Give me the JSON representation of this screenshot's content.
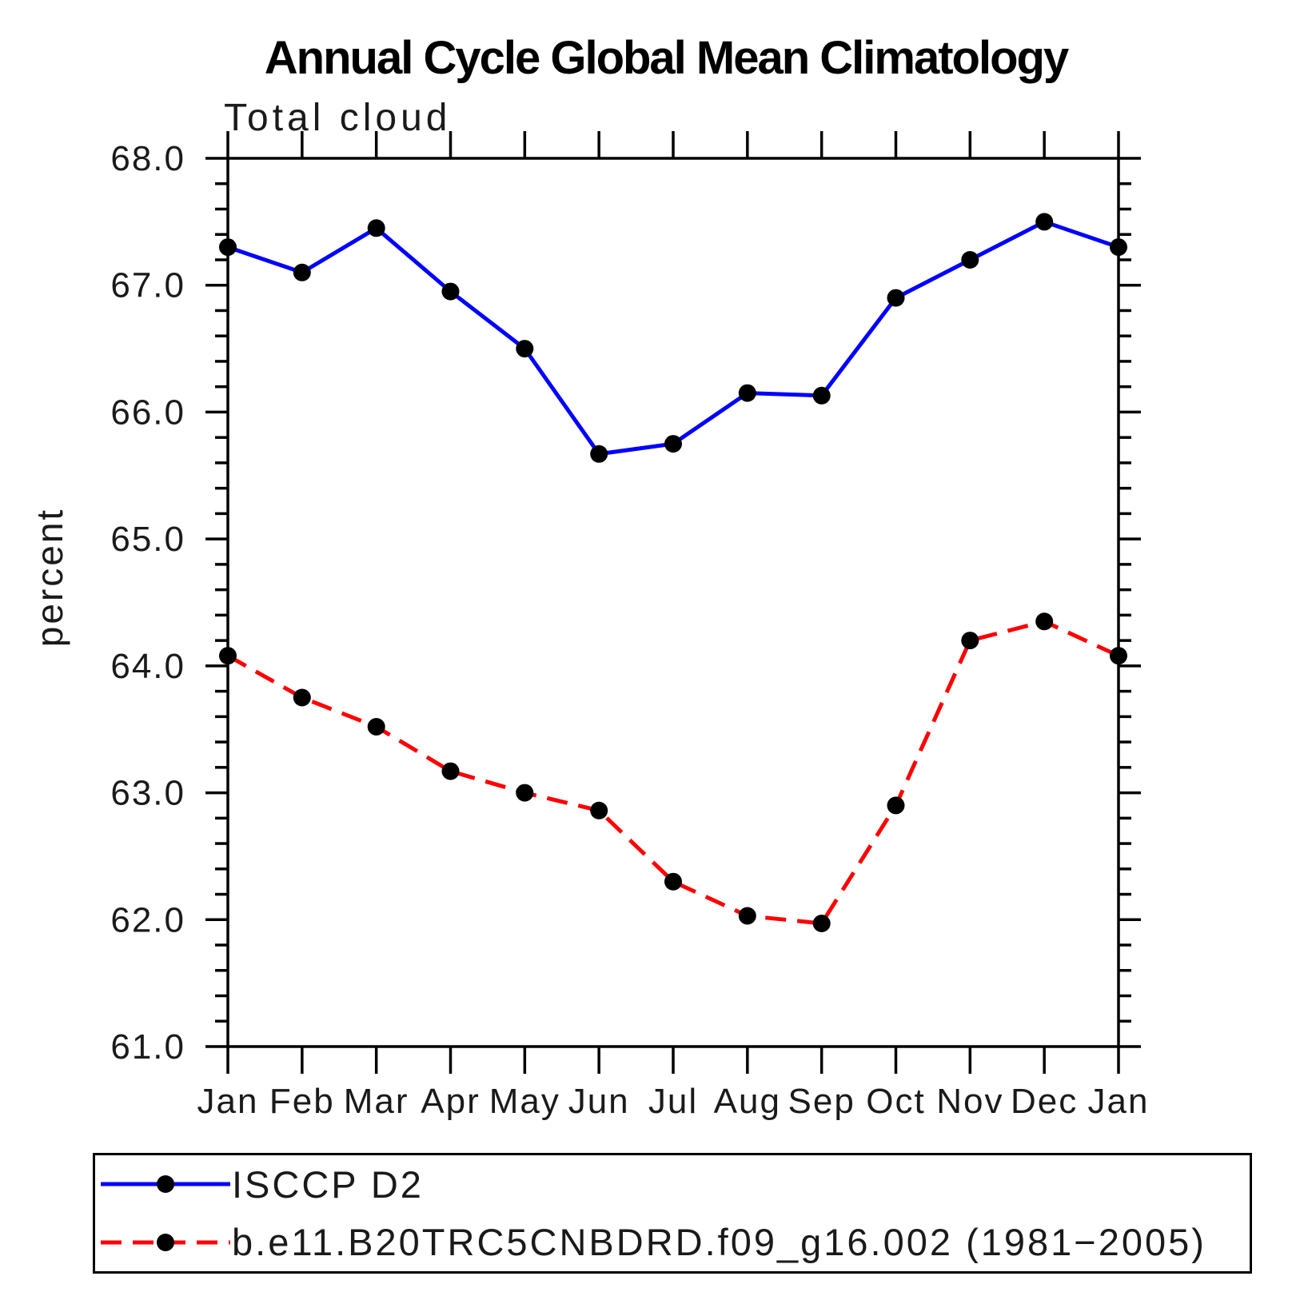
{
  "chart_data": {
    "type": "line",
    "title": "Annual Cycle Global Mean Climatology",
    "subtitle": "Total cloud",
    "ylabel": "percent",
    "x_categories": [
      "Jan",
      "Feb",
      "Mar",
      "Apr",
      "May",
      "Jun",
      "Jul",
      "Aug",
      "Sep",
      "Oct",
      "Nov",
      "Dec",
      "Jan"
    ],
    "ylim": [
      61.0,
      68.0
    ],
    "ytick_step": 1.0,
    "ytick_minor_step": 0.2,
    "yticks": [
      61.0,
      62.0,
      63.0,
      64.0,
      65.0,
      66.0,
      67.0,
      68.0
    ],
    "ytick_labels": [
      "61.0",
      "62.0",
      "63.0",
      "64.0",
      "65.0",
      "66.0",
      "67.0",
      "68.0"
    ],
    "grid": "off",
    "legend_position": "bottom",
    "marker": "filled-circle",
    "marker_color": "#000000",
    "axis_color": "#000000",
    "series": [
      {
        "name": "ISCCP D2",
        "color": "#0000ff",
        "style": "solid",
        "values": [
          67.3,
          67.1,
          67.45,
          66.95,
          66.5,
          65.67,
          65.75,
          66.15,
          66.13,
          66.9,
          67.2,
          67.5,
          67.3
        ]
      },
      {
        "name": "b.e11.B20TRC5CNBDRD.f09_g16.002 (1981−2005)",
        "color": "#ff0000",
        "style": "dashed",
        "values": [
          64.08,
          63.75,
          63.52,
          63.17,
          63.0,
          62.86,
          62.3,
          62.03,
          61.97,
          62.9,
          64.2,
          64.35,
          64.08
        ]
      }
    ]
  }
}
